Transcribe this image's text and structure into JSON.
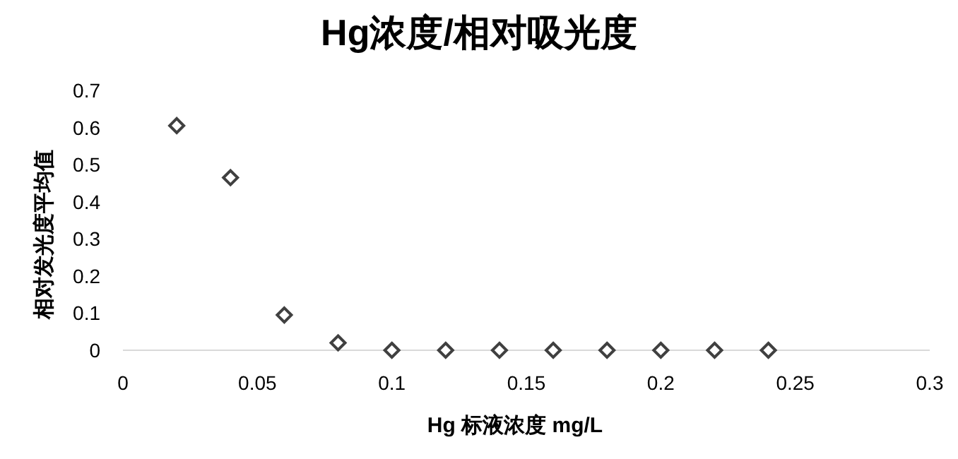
{
  "chart_data": {
    "type": "scatter",
    "title": "Hg浓度/相对吸光度",
    "xlabel": "Hg 标液浓度 mg/L",
    "ylabel": "相对发光度平均值",
    "x": [
      0.02,
      0.04,
      0.06,
      0.08,
      0.1,
      0.12,
      0.14,
      0.16,
      0.18,
      0.2,
      0.22,
      0.24
    ],
    "series": [
      {
        "color": "#404040",
        "values": [
          0.605,
          0.465,
          0.095,
          0.02,
          0,
          0,
          0,
          0,
          0,
          0,
          0,
          0
        ]
      }
    ],
    "marker": "diamond",
    "xlim": [
      0,
      0.3
    ],
    "xticks": [
      0,
      0.05,
      0.1,
      0.15,
      0.2,
      0.25,
      0.3
    ],
    "ylim": [
      0,
      0.7
    ],
    "yticks": [
      0,
      0.1,
      0.2,
      0.3,
      0.4,
      0.5,
      0.6,
      0.7
    ]
  }
}
